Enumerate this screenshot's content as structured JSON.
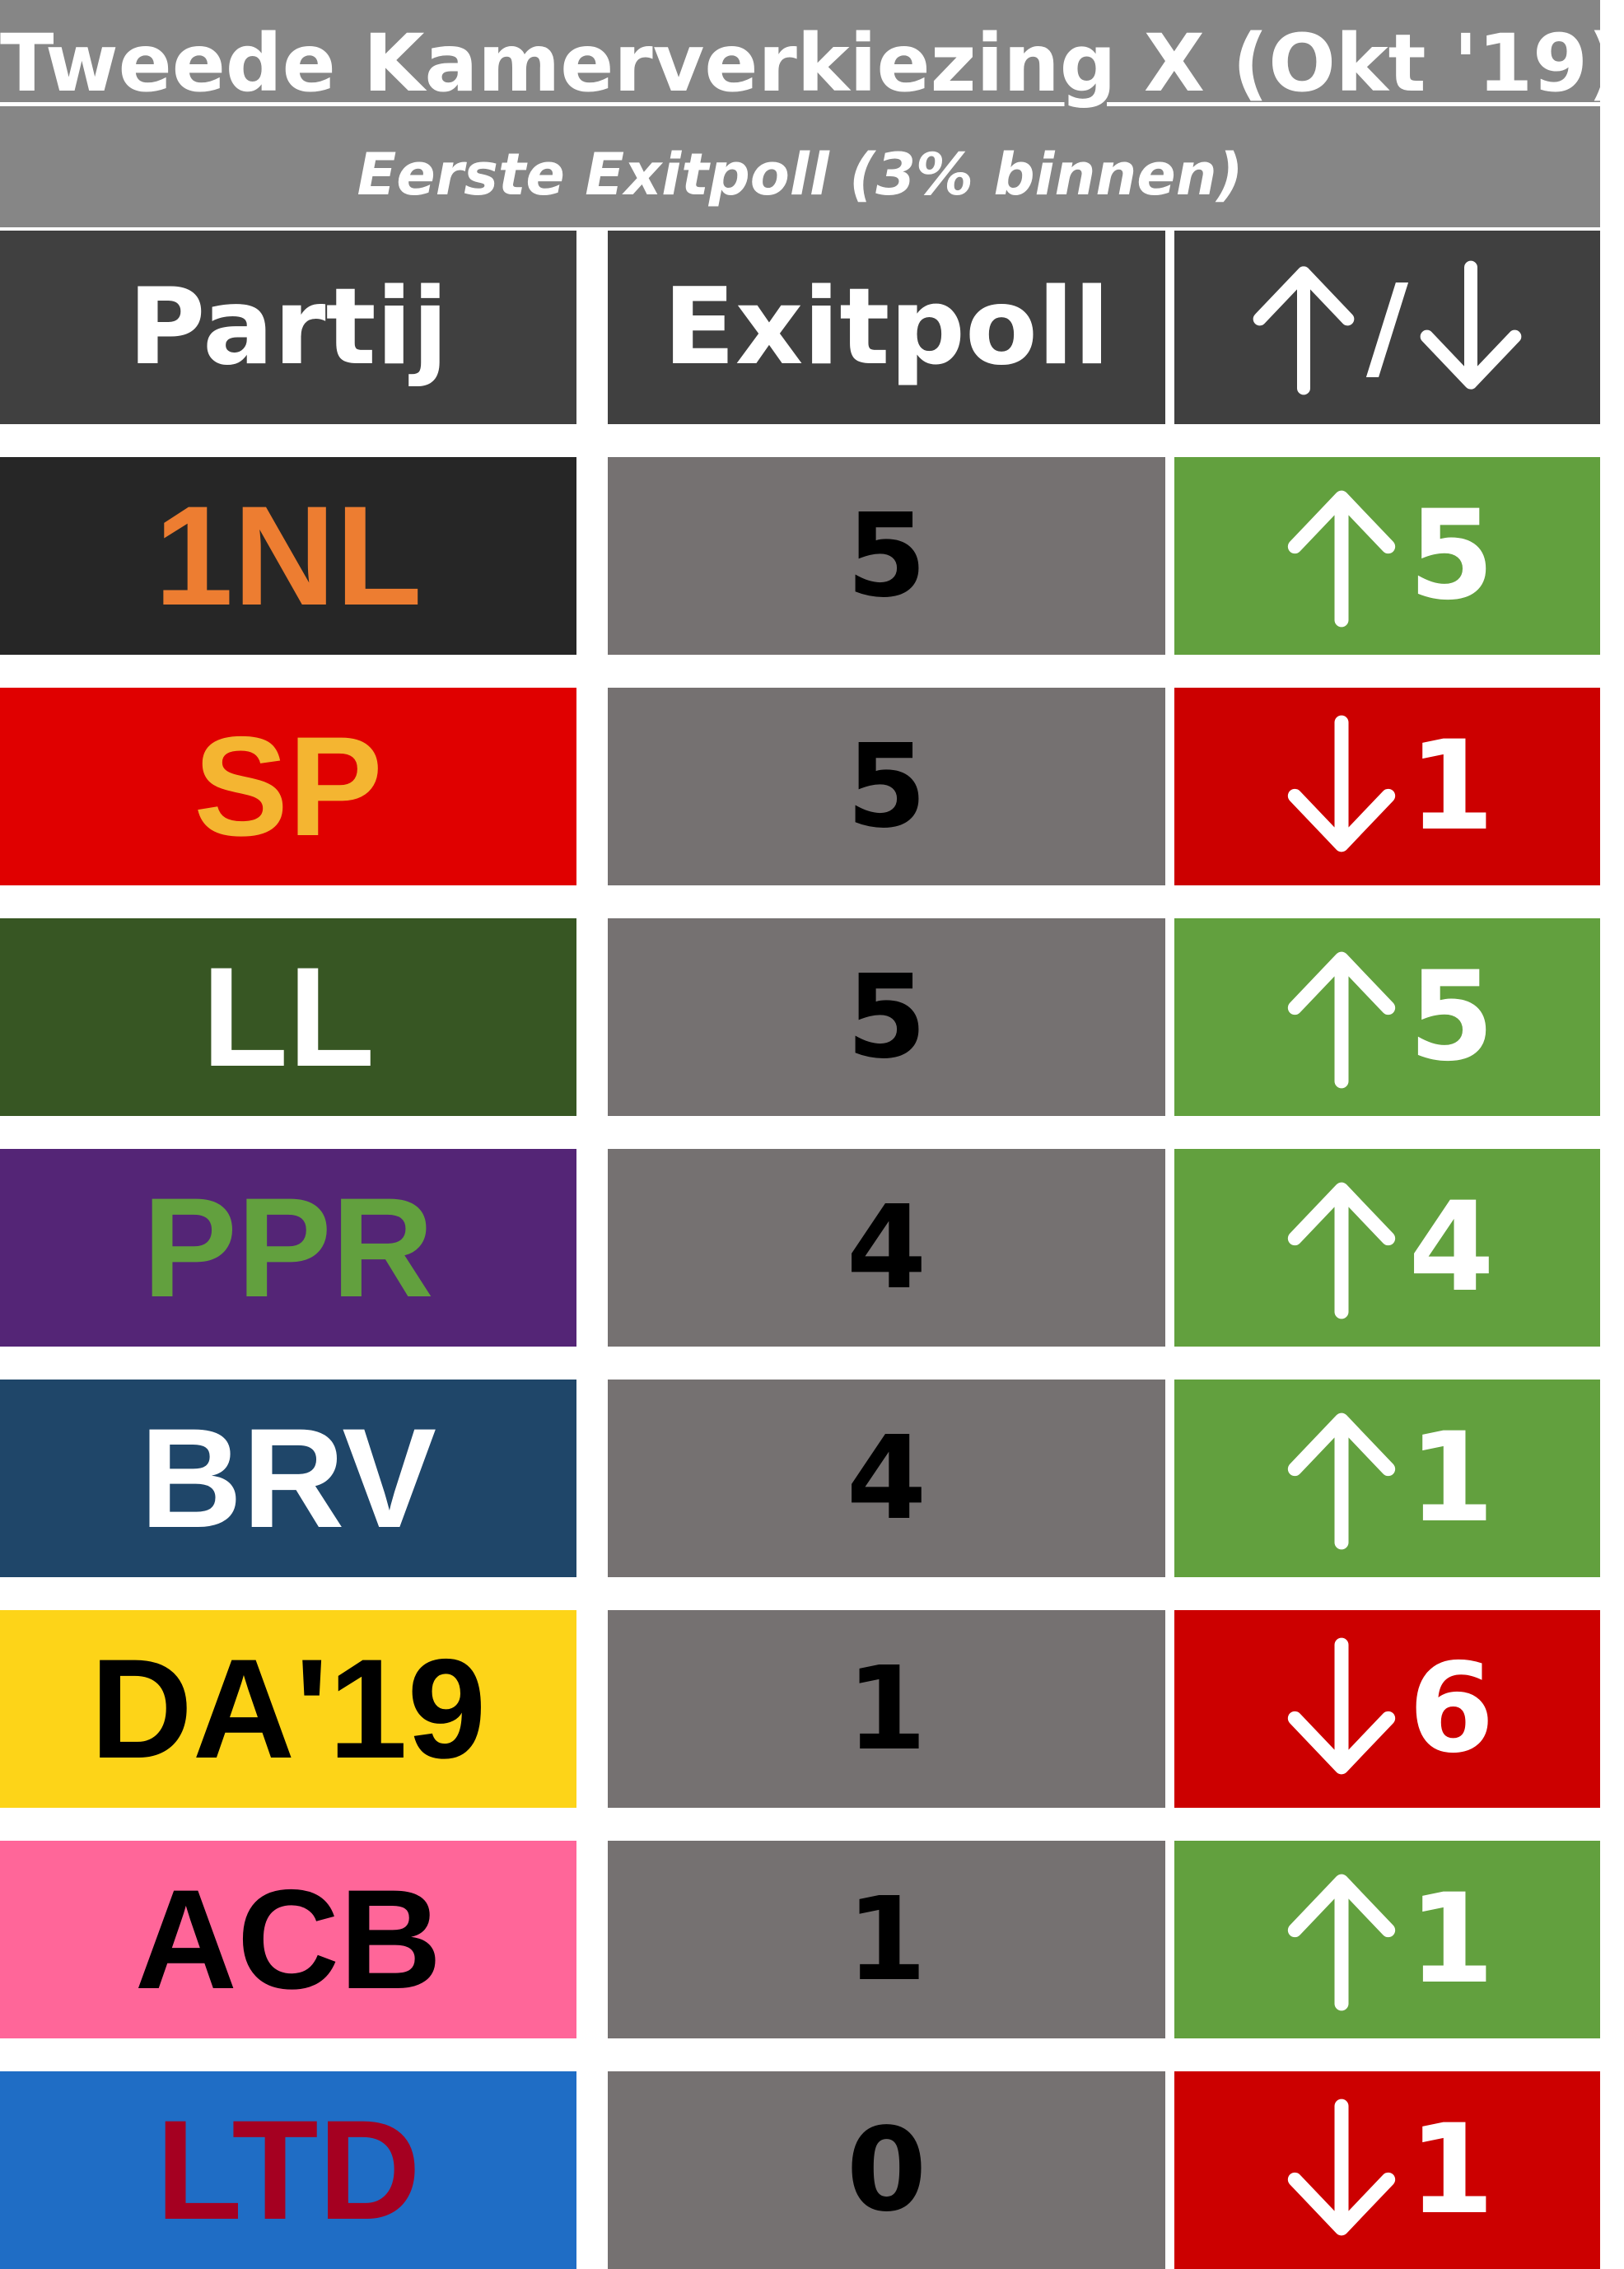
{
  "title": "Tweede Kamerverkiezing X (Okt '19)",
  "subtitle": "Eerste Exitpoll (3% binnen)",
  "header": {
    "party": "Partij",
    "poll": "Exitpoll",
    "change_slash": "/"
  },
  "colors": {
    "title_band": "#868686",
    "header_bg": "#404040",
    "poll_bg": "#757171",
    "increase_bg": "#62A03E",
    "decrease_bg": "#CC0000"
  },
  "rows": [
    {
      "party": "1NL",
      "party_bg": "#262626",
      "party_fg": "#ED7D31",
      "seats": "5",
      "direction": "up",
      "change": "5"
    },
    {
      "party": "SP",
      "party_bg": "#E00000",
      "party_fg": "#F4B531",
      "seats": "5",
      "direction": "down",
      "change": "1"
    },
    {
      "party": "LL",
      "party_bg": "#375623",
      "party_fg": "#FFFFFF",
      "seats": "5",
      "direction": "up",
      "change": "5"
    },
    {
      "party": "PPR",
      "party_bg": "#542576",
      "party_fg": "#62A03E",
      "seats": "4",
      "direction": "up",
      "change": "4"
    },
    {
      "party": "BRV",
      "party_bg": "#1F4669",
      "party_fg": "#FFFFFF",
      "seats": "4",
      "direction": "up",
      "change": "1"
    },
    {
      "party": "DA'19",
      "party_bg": "#FDD418",
      "party_fg": "#000000",
      "seats": "1",
      "direction": "down",
      "change": "6"
    },
    {
      "party": "ACB",
      "party_bg": "#FF6699",
      "party_fg": "#000000",
      "seats": "1",
      "direction": "up",
      "change": "1"
    },
    {
      "party": "LTD",
      "party_bg": "#1F6DC5",
      "party_fg": "#A50021",
      "seats": "0",
      "direction": "down",
      "change": "1"
    }
  ]
}
